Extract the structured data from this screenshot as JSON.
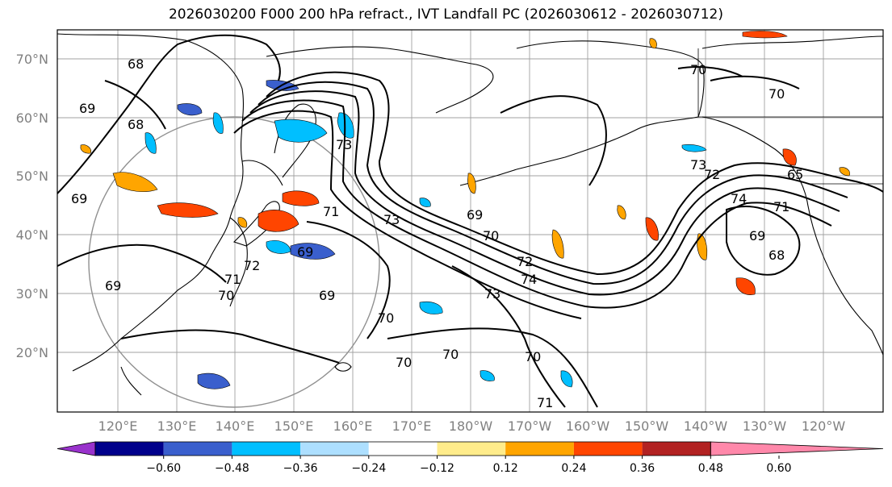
{
  "title": "2026030200 F000 200 hPa refract., IVT Landfall PC (2026030612 - 2026030712)",
  "lat_ticks": [
    "70°N",
    "60°N",
    "50°N",
    "40°N",
    "30°N",
    "20°N"
  ],
  "lon_ticks": [
    "120°E",
    "130°E",
    "140°E",
    "150°E",
    "160°E",
    "170°E",
    "180°W",
    "170°W",
    "160°W",
    "150°W",
    "140°W",
    "130°W",
    "120°W"
  ],
  "colorbar": {
    "colors": [
      "#9932CC",
      "#00008B",
      "#3A5FCD",
      "#00BFFF",
      "#ADDFFF",
      "#FFFFFF",
      "#FFEC8B",
      "#FFA500",
      "#FF4500",
      "#B22222",
      "#FF88AA"
    ],
    "ticks": [
      "−0.60",
      "−0.48",
      "−0.36",
      "−0.24",
      "−0.12",
      "0.12",
      "0.24",
      "0.36",
      "0.48",
      "0.60"
    ]
  },
  "contour_labels": [
    {
      "text": "68"
    },
    {
      "text": "69"
    },
    {
      "text": "68"
    },
    {
      "text": "69"
    },
    {
      "text": "69"
    },
    {
      "text": "72"
    },
    {
      "text": "71"
    },
    {
      "text": "70"
    },
    {
      "text": "69"
    },
    {
      "text": "69"
    },
    {
      "text": "71"
    },
    {
      "text": "73"
    },
    {
      "text": "69"
    },
    {
      "text": "70"
    },
    {
      "text": "72"
    },
    {
      "text": "74"
    },
    {
      "text": "73"
    },
    {
      "text": "70"
    },
    {
      "text": "70"
    },
    {
      "text": "70"
    },
    {
      "text": "70"
    },
    {
      "text": "71"
    },
    {
      "text": "73"
    },
    {
      "text": "72"
    },
    {
      "text": "74"
    },
    {
      "text": "71"
    },
    {
      "text": "69"
    },
    {
      "text": "68"
    },
    {
      "text": "65"
    },
    {
      "text": "70"
    },
    {
      "text": "70"
    },
    {
      "text": "73"
    }
  ],
  "colors": {
    "contour": "#000000",
    "grid": "#A0A0A0",
    "frame": "#000000",
    "tick_label": "#808080"
  }
}
